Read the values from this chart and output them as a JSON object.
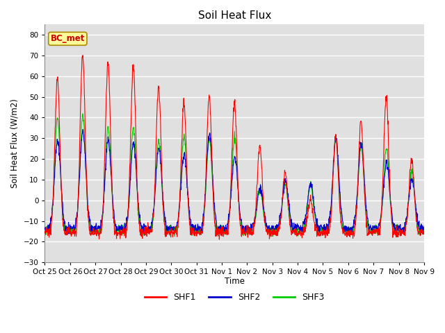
{
  "title": "Soil Heat Flux",
  "ylabel": "Soil Heat Flux (W/m2)",
  "xlabel": "Time",
  "ylim": [
    -30,
    85
  ],
  "yticks": [
    -30,
    -20,
    -10,
    0,
    10,
    20,
    30,
    40,
    50,
    60,
    70,
    80
  ],
  "background_color": "#e0e0e0",
  "plot_bg_color": "#e0e0e0",
  "fig_bg_color": "#ffffff",
  "grid_color": "#ffffff",
  "line_colors": {
    "SHF1": "#ff0000",
    "SHF2": "#0000cc",
    "SHF3": "#00cc00"
  },
  "line_widths": {
    "SHF1": 0.8,
    "SHF2": 0.8,
    "SHF3": 0.8
  },
  "annotation_text": "BC_met",
  "annotation_bg": "#ffff99",
  "annotation_edge": "#aa8800",
  "annotation_text_color": "#cc0000",
  "tick_labels": [
    "Oct 25",
    "Oct 26",
    "Oct 27",
    "Oct 28",
    "Oct 29",
    "Oct 30",
    "Oct 31",
    "Nov 1",
    "Nov 2",
    "Nov 3",
    "Nov 4",
    "Nov 5",
    "Nov 6",
    "Nov 7",
    "Nov 8",
    "Nov 9"
  ],
  "n_days": 15,
  "pts_per_day": 96,
  "legend_entries": [
    "SHF1",
    "SHF2",
    "SHF3"
  ],
  "night_base": -15.0,
  "day_peaks1": [
    59,
    70,
    67,
    65,
    55,
    47,
    50,
    47,
    26,
    13,
    0,
    31,
    38,
    49,
    20
  ],
  "day_peaks2": [
    29,
    33,
    29,
    28,
    25,
    22,
    32,
    21,
    6,
    10,
    8,
    30,
    27,
    18,
    10
  ],
  "day_peaks3": [
    40,
    41,
    35,
    35,
    29,
    31,
    30,
    30,
    6,
    8,
    8,
    30,
    27,
    25,
    15
  ]
}
